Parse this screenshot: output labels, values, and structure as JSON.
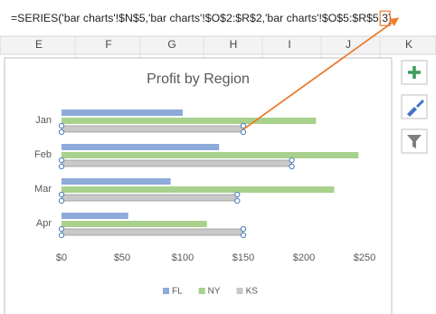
{
  "formula_bar": {
    "before": "=SERIES('bar charts'!$N$5,'bar charts'!$O$2:$R$2,'bar charts'!$O$5:$R$5,",
    "highlighted": "3",
    "after": ")"
  },
  "column_headers": [
    "E",
    "F",
    "G",
    "H",
    "I",
    "J",
    "K"
  ],
  "chart_data": {
    "type": "bar",
    "orientation": "horizontal",
    "title": "Profit by Region",
    "categories": [
      "Jan",
      "Feb",
      "Mar",
      "Apr"
    ],
    "series": [
      {
        "name": "FL",
        "color": "#8eaadb",
        "values": [
          100,
          130,
          90,
          55
        ]
      },
      {
        "name": "NY",
        "color": "#a9d18e",
        "values": [
          210,
          245,
          225,
          120
        ]
      },
      {
        "name": "KS",
        "color": "#c9c9c9",
        "values": [
          150,
          190,
          145,
          150
        ]
      }
    ],
    "xlim": [
      0,
      250
    ],
    "xticks": [
      {
        "value": 0,
        "label": "$0"
      },
      {
        "value": 50,
        "label": "$50"
      },
      {
        "value": 100,
        "label": "$100"
      },
      {
        "value": 150,
        "label": "$150"
      },
      {
        "value": 200,
        "label": "$200"
      },
      {
        "value": 250,
        "label": "$250"
      }
    ],
    "grid": false,
    "legend": "bottom"
  }
}
